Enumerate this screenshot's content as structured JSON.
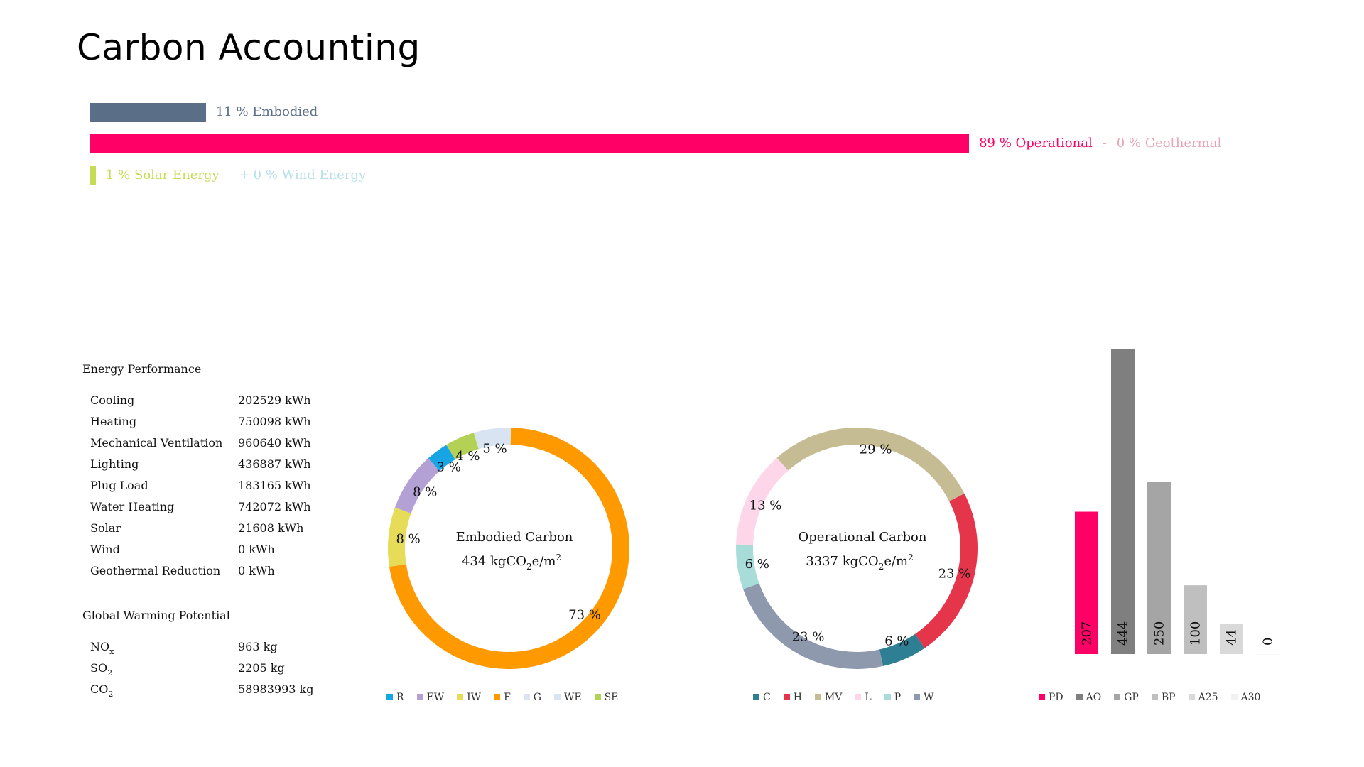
{
  "page": {
    "title": "Carbon Accounting"
  },
  "summary": {
    "embodied": {
      "percent": 11,
      "label": "11 % Embodied",
      "color": "#5a6f87"
    },
    "operational": {
      "percent": 89,
      "label": "89 % Operational",
      "color": "#ff0066"
    },
    "geothermal": {
      "prefix": "-",
      "label": "0 % Geothermal",
      "color": "#e6a6b6"
    },
    "solar": {
      "percent": 1,
      "label": "1 % Solar Energy",
      "color": "#c6dc55"
    },
    "wind": {
      "prefix": "+",
      "label": "0 % Wind Energy",
      "color": "#b9dfea"
    }
  },
  "energy": {
    "title": "Energy Performance",
    "rows": [
      {
        "label": "Cooling",
        "value": "202529 kWh"
      },
      {
        "label": "Heating",
        "value": "750098 kWh"
      },
      {
        "label": "Mechanical Ventilation",
        "value": "960640 kWh"
      },
      {
        "label": "Lighting",
        "value": "436887 kWh"
      },
      {
        "label": "Plug Load",
        "value": "183165 kWh"
      },
      {
        "label": "Water Heating",
        "value": "742072 kWh"
      },
      {
        "label": "Solar",
        "value": "21608 kWh"
      },
      {
        "label": "Wind",
        "value": "0 kWh"
      },
      {
        "label": "Geothermal Reduction",
        "value": "0 kWh"
      }
    ]
  },
  "gwp": {
    "title": "Global Warming Potential",
    "rows": [
      {
        "base": "NO",
        "sub": "x",
        "value": "963 kg"
      },
      {
        "base": "SO",
        "sub": "2",
        "value": "2205 kg"
      },
      {
        "base": "CO",
        "sub": "2",
        "value": "58983993 kg"
      }
    ]
  },
  "chart_data": [
    {
      "type": "pie",
      "donut": true,
      "center_title": "Embodied Carbon",
      "center_value": "434 kgCO",
      "center_sub": "2",
      "center_suffix": "e/m",
      "center_sup": "2",
      "categories": [
        "R",
        "EW",
        "IW",
        "F",
        "G",
        "WE",
        "SE"
      ],
      "values": [
        3,
        8,
        8,
        73,
        0,
        5,
        4
      ],
      "labels": [
        "3 %",
        "8 %",
        "8 %",
        "73 %",
        "",
        "5 %",
        "4 %"
      ],
      "colors": [
        "#17a5e5",
        "#b3a1d6",
        "#e6dc58",
        "#ff9900",
        "#dde3f3",
        "#d8e4f2",
        "#b3d155"
      ],
      "draw_order": [
        3,
        2,
        1,
        0,
        6,
        5
      ]
    },
    {
      "type": "pie",
      "donut": true,
      "center_title": "Operational Carbon",
      "center_value": "3337 kgCO",
      "center_sub": "2",
      "center_suffix": "e/m",
      "center_sup": "2",
      "categories": [
        "C",
        "H",
        "MV",
        "L",
        "P",
        "W"
      ],
      "values": [
        6,
        23,
        29,
        13,
        6,
        23
      ],
      "labels": [
        "6 %",
        "23 %",
        "29 %",
        "13 %",
        "6 %",
        "23 %"
      ],
      "colors": [
        "#2e7f93",
        "#e5354a",
        "#c5bc94",
        "#fdd6ea",
        "#a8dcd9",
        "#8e99ae"
      ],
      "draw_order": [
        1,
        0,
        5,
        4,
        3,
        2
      ]
    },
    {
      "type": "bar",
      "categories": [
        "PD",
        "AO",
        "GP",
        "BP",
        "A25",
        "A30"
      ],
      "values": [
        207,
        444,
        250,
        100,
        44,
        0
      ],
      "colors": [
        "#ff0066",
        "#7f7f7f",
        "#a5a5a5",
        "#bfbfbf",
        "#d9d9d9",
        "#f2f2f2"
      ],
      "ylim": [
        0,
        444
      ]
    }
  ]
}
